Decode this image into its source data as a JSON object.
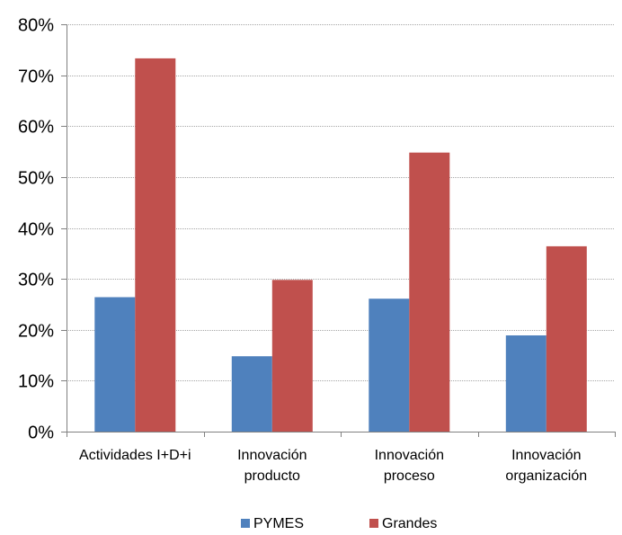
{
  "chart_data": {
    "type": "bar",
    "categories": [
      [
        "Actividades I+D+i"
      ],
      [
        "Innovación",
        "producto"
      ],
      [
        "Innovación",
        "proceso"
      ],
      [
        "Innovación",
        "organización"
      ]
    ],
    "series": [
      {
        "name": "PYMES",
        "values": [
          26.4,
          14.8,
          26.1,
          18.9
        ],
        "color": "#4F81BD"
      },
      {
        "name": "Grandes",
        "values": [
          73.3,
          29.8,
          54.8,
          36.4
        ],
        "color": "#C0504D"
      }
    ],
    "yticks": [
      "0%",
      "10%",
      "20%",
      "30%",
      "40%",
      "50%",
      "60%",
      "70%",
      "80%"
    ],
    "ylim": [
      0,
      80
    ],
    "grid": true,
    "legend": "bottom"
  }
}
